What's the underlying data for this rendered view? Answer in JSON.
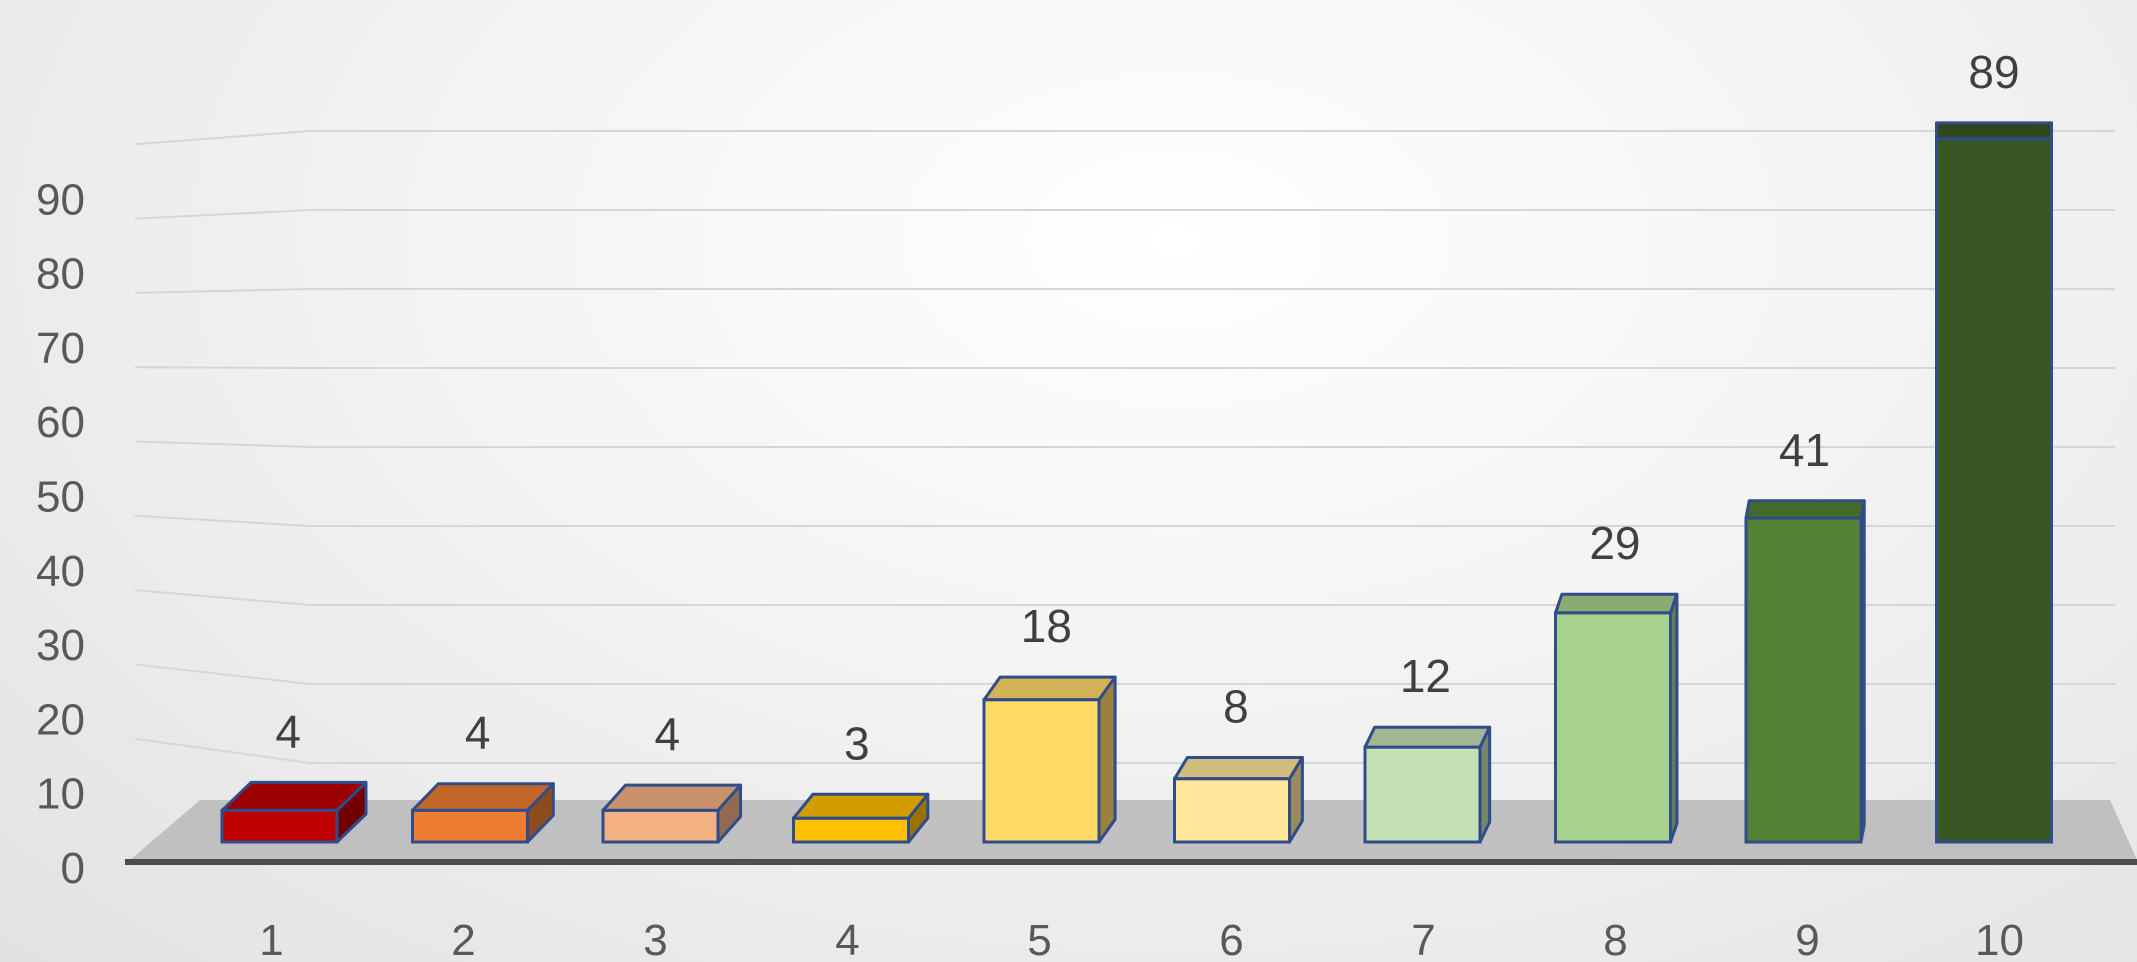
{
  "chart_data": {
    "type": "bar",
    "style": "3d-column",
    "categories": [
      "1",
      "2",
      "3",
      "4",
      "5",
      "6",
      "7",
      "8",
      "9",
      "10"
    ],
    "values": [
      4,
      4,
      4,
      3,
      18,
      8,
      12,
      29,
      41,
      89
    ],
    "ylim": [
      0,
      90
    ],
    "yticks": [
      0,
      10,
      20,
      30,
      40,
      50,
      60,
      70,
      80,
      90
    ],
    "grid": true,
    "legend": "none",
    "data_labels": true,
    "bar_colors": [
      "#c00000",
      "#ed7d31",
      "#f4b183",
      "#ffc000",
      "#ffd966",
      "#ffe699",
      "#c5e0b4",
      "#a9d18e",
      "#548235",
      "#385723"
    ]
  }
}
